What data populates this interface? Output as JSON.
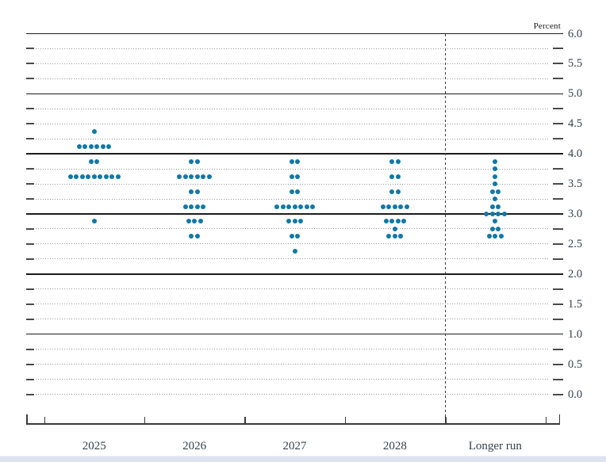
{
  "chart": {
    "percent_label": "Percent",
    "dot_color": "#1178a4",
    "solid_line_color": "#1c1c1c",
    "dotted_line_color": "#98989e",
    "axis_text_color": "#36424f",
    "y_axis_labels": [
      "6.0",
      "5.5",
      "5.0",
      "4.5",
      "4.0",
      "3.5",
      "3.0",
      "2.5",
      "2.0",
      "1.5",
      "1.0",
      "0.5",
      "0.0"
    ]
  },
  "chart_data": {
    "type": "scatter",
    "title": "",
    "ylabel": "Percent",
    "y_min": 0.0,
    "y_max": 6.0,
    "y_tick_step": 0.25,
    "y_label_step": 0.5,
    "solid_gridlines_at": [
      1.0,
      2.0,
      3.0,
      4.0,
      5.0,
      6.0
    ],
    "grid": "dotted lines every 0.25, solid lines at whole percents, dashed vertical divider before Longer run",
    "legend_position": "none",
    "categories": [
      "2025",
      "2026",
      "2027",
      "2028",
      "Longer run"
    ],
    "divider_after_category": "2028",
    "series": [
      {
        "name": "2025",
        "dots": [
          {
            "value": 4.375,
            "count": 1
          },
          {
            "value": 4.125,
            "count": 6
          },
          {
            "value": 3.875,
            "count": 2
          },
          {
            "value": 3.625,
            "count": 9
          },
          {
            "value": 2.875,
            "count": 1
          }
        ]
      },
      {
        "name": "2026",
        "dots": [
          {
            "value": 3.875,
            "count": 2
          },
          {
            "value": 3.625,
            "count": 6
          },
          {
            "value": 3.375,
            "count": 2
          },
          {
            "value": 3.125,
            "count": 4
          },
          {
            "value": 2.875,
            "count": 3
          },
          {
            "value": 2.625,
            "count": 2
          }
        ]
      },
      {
        "name": "2027",
        "dots": [
          {
            "value": 3.875,
            "count": 2
          },
          {
            "value": 3.625,
            "count": 2
          },
          {
            "value": 3.375,
            "count": 2
          },
          {
            "value": 3.125,
            "count": 7
          },
          {
            "value": 2.875,
            "count": 3
          },
          {
            "value": 2.625,
            "count": 2
          },
          {
            "value": 2.375,
            "count": 1
          }
        ]
      },
      {
        "name": "2028",
        "dots": [
          {
            "value": 3.875,
            "count": 2
          },
          {
            "value": 3.625,
            "count": 2
          },
          {
            "value": 3.375,
            "count": 2
          },
          {
            "value": 3.125,
            "count": 5
          },
          {
            "value": 2.875,
            "count": 4
          },
          {
            "value": 2.75,
            "count": 1
          },
          {
            "value": 2.625,
            "count": 3
          }
        ]
      },
      {
        "name": "Longer run",
        "dots": [
          {
            "value": 3.875,
            "count": 1
          },
          {
            "value": 3.75,
            "count": 1
          },
          {
            "value": 3.625,
            "count": 1
          },
          {
            "value": 3.5,
            "count": 1
          },
          {
            "value": 3.375,
            "count": 2
          },
          {
            "value": 3.25,
            "count": 1
          },
          {
            "value": 3.125,
            "count": 2
          },
          {
            "value": 3.0,
            "count": 4
          },
          {
            "value": 2.875,
            "count": 1
          },
          {
            "value": 2.75,
            "count": 2
          },
          {
            "value": 2.625,
            "count": 3
          }
        ]
      }
    ]
  }
}
